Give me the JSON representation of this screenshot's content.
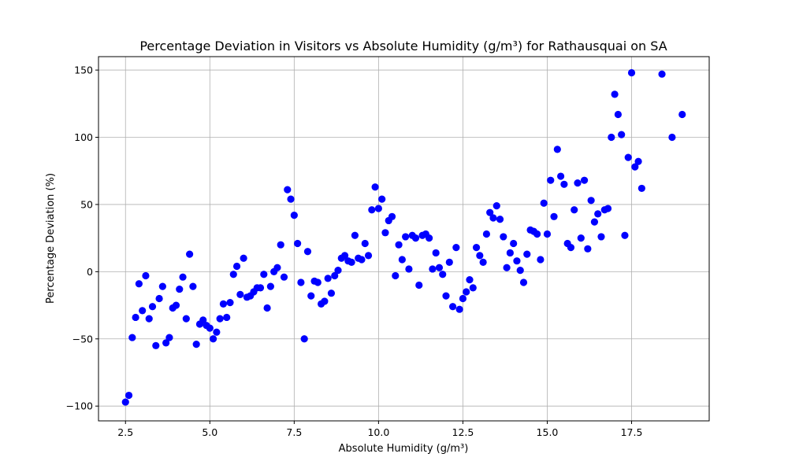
{
  "chart_data": {
    "type": "scatter",
    "title": "Percentage Deviation in Visitors vs Absolute Humidity (g/m³) for Rathausquai on SA",
    "xlabel": "Absolute Humidity (g/m³)",
    "ylabel": "Percentage Deviation (%)",
    "xlim": [
      1.7,
      19.8
    ],
    "ylim": [
      -111,
      160
    ],
    "xticks": [
      2.5,
      5.0,
      7.5,
      10.0,
      12.5,
      15.0,
      17.5
    ],
    "xtick_labels": [
      "2.5",
      "5.0",
      "7.5",
      "10.0",
      "12.5",
      "15.0",
      "17.5"
    ],
    "yticks": [
      -100,
      -50,
      0,
      50,
      100,
      150
    ],
    "ytick_labels": [
      "−100",
      "−50",
      "0",
      "50",
      "100",
      "150"
    ],
    "grid": true,
    "marker_color": "#0000ff",
    "x": [
      2.5,
      2.6,
      2.7,
      2.8,
      2.9,
      3.0,
      3.1,
      3.2,
      3.3,
      3.4,
      3.5,
      3.6,
      3.7,
      3.8,
      3.9,
      4.0,
      4.1,
      4.2,
      4.3,
      4.4,
      4.5,
      4.6,
      4.7,
      4.8,
      4.9,
      5.0,
      5.1,
      5.2,
      5.3,
      5.4,
      5.5,
      5.6,
      5.7,
      5.8,
      5.9,
      6.0,
      6.1,
      6.2,
      6.3,
      6.4,
      6.5,
      6.6,
      6.7,
      6.8,
      6.9,
      7.0,
      7.1,
      7.2,
      7.3,
      7.4,
      7.5,
      7.6,
      7.7,
      7.8,
      7.9,
      8.0,
      8.1,
      8.2,
      8.3,
      8.4,
      8.5,
      8.6,
      8.7,
      8.8,
      8.9,
      9.0,
      9.1,
      9.2,
      9.3,
      9.4,
      9.5,
      9.6,
      9.7,
      9.8,
      9.9,
      10.0,
      10.1,
      10.2,
      10.3,
      10.4,
      10.5,
      10.6,
      10.7,
      10.8,
      10.9,
      11.0,
      11.1,
      11.2,
      11.3,
      11.4,
      11.5,
      11.6,
      11.7,
      11.8,
      11.9,
      12.0,
      12.1,
      12.2,
      12.3,
      12.4,
      12.5,
      12.6,
      12.7,
      12.8,
      12.9,
      13.0,
      13.1,
      13.2,
      13.3,
      13.4,
      13.5,
      13.6,
      13.7,
      13.8,
      13.9,
      14.0,
      14.1,
      14.2,
      14.3,
      14.4,
      14.5,
      14.6,
      14.7,
      14.8,
      14.9,
      15.0,
      15.1,
      15.2,
      15.3,
      15.4,
      15.5,
      15.6,
      15.7,
      15.8,
      15.9,
      16.0,
      16.1,
      16.2,
      16.3,
      16.4,
      16.5,
      16.6,
      16.7,
      16.8,
      16.9,
      17.0,
      17.1,
      17.2,
      17.3,
      17.4,
      17.5,
      17.6,
      17.7,
      17.8,
      18.4,
      18.7,
      19.0
    ],
    "y": [
      -97,
      -92,
      -49,
      -34,
      -9,
      -29,
      -3,
      -35,
      -26,
      -55,
      -20,
      -11,
      -53,
      -49,
      -27,
      -25,
      -13,
      -4,
      -35,
      13,
      -11,
      -54,
      -39,
      -36,
      -40,
      -42,
      -50,
      -45,
      -35,
      -24,
      -34,
      -23,
      -2,
      4,
      -17,
      10,
      -19,
      -18,
      -15,
      -12,
      -12,
      -2,
      -27,
      -11,
      0,
      3,
      20,
      -4,
      61,
      54,
      42,
      21,
      -8,
      -50,
      15,
      -18,
      -7,
      -8,
      -24,
      -22,
      -5,
      -16,
      -3,
      1,
      10,
      12,
      8,
      7,
      27,
      10,
      9,
      21,
      12,
      46,
      63,
      47,
      54,
      29,
      38,
      41,
      -3,
      20,
      9,
      26,
      2,
      27,
      25,
      -10,
      27,
      28,
      25,
      2,
      14,
      3,
      -2,
      -18,
      7,
      -26,
      18,
      -28,
      -20,
      -15,
      -6,
      -12,
      18,
      12,
      7,
      28,
      44,
      40,
      49,
      39,
      26,
      3,
      14,
      21,
      8,
      1,
      -8,
      13,
      31,
      30,
      28,
      9,
      51,
      28,
      68,
      41,
      91,
      71,
      65,
      21,
      18,
      46,
      66,
      25,
      68,
      17,
      53,
      37,
      43,
      26,
      46,
      47,
      100,
      132,
      117,
      102,
      27,
      85,
      148,
      78,
      82,
      62,
      147,
      100,
      117
    ]
  }
}
